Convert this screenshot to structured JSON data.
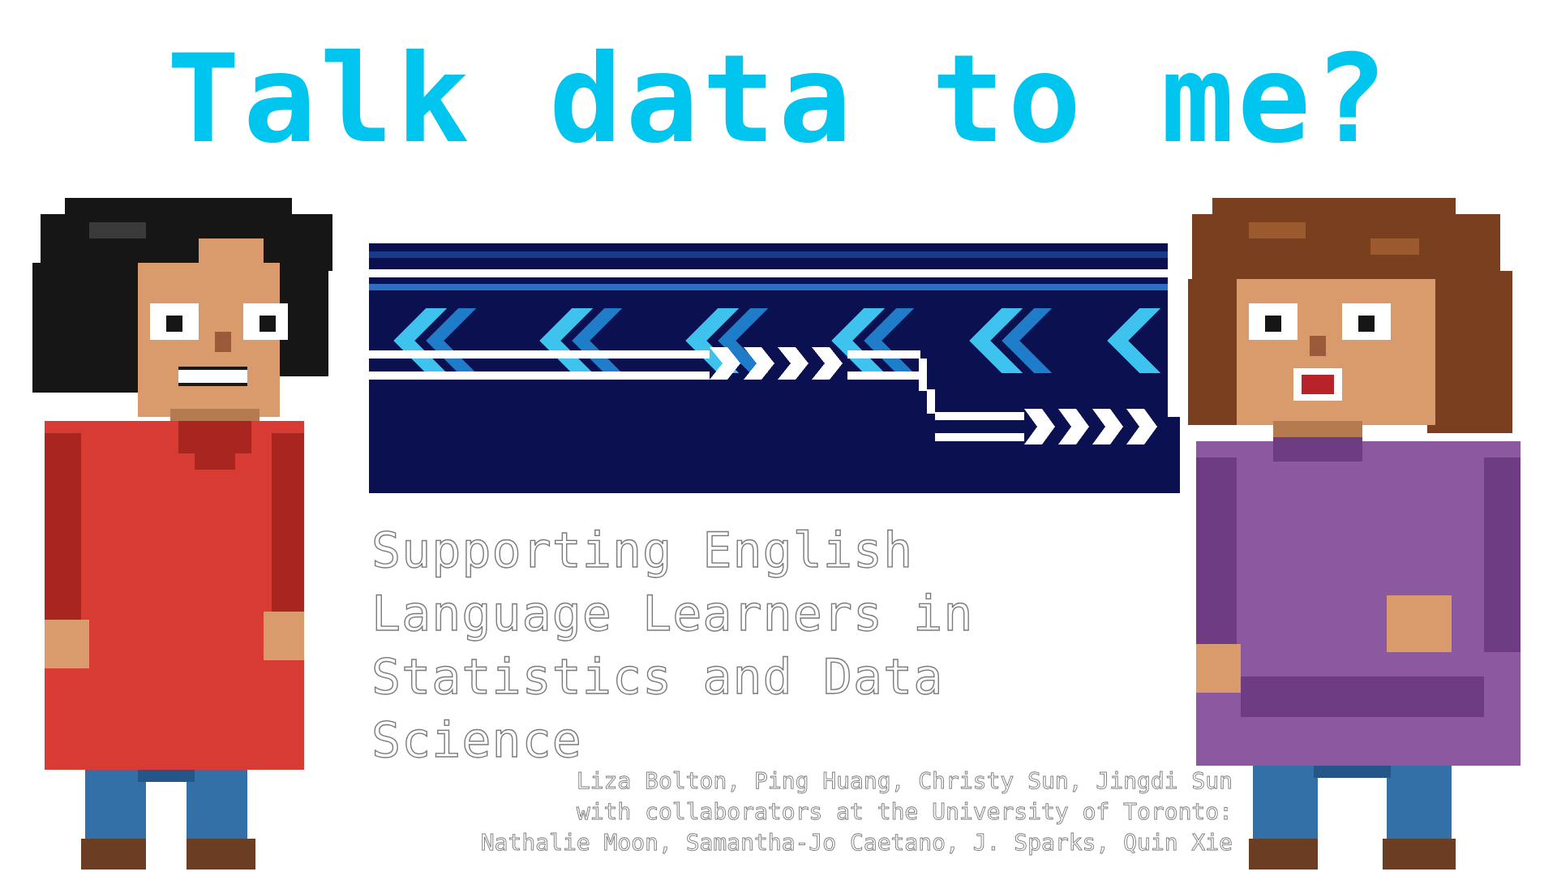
{
  "title": "Talk data to me?",
  "subtitle": "Supporting English\nLanguage Learners in\nStatistics and Data\nScience",
  "authors": {
    "line1": "Liza Bolton, Ping Huang, Christy Sun, Jingdi Sun",
    "line2": "with collaborators at the University of Toronto:",
    "line3": "Nathalie Moon, Samantha-Jo Caetano, J. Sparks, Quin Xie"
  },
  "colors": {
    "title": "#00c5ee",
    "banner_dark": "#0b1150",
    "banner_light": "#3ec3ee",
    "banner_mid": "#1e7cc8",
    "shirt_left": "#d83a34",
    "shirt_right": "#8c58a0",
    "hair_left": "#161616",
    "hair_right": "#7a3f1e",
    "skin": "#d99a6c",
    "jeans": "#3470a8",
    "boots": "#6b3d22"
  },
  "icons": {
    "left_character": "pixel-person-black-hair-icon",
    "right_character": "pixel-person-brown-hair-icon",
    "banner": "pixel-data-stream-arrows-icon"
  }
}
